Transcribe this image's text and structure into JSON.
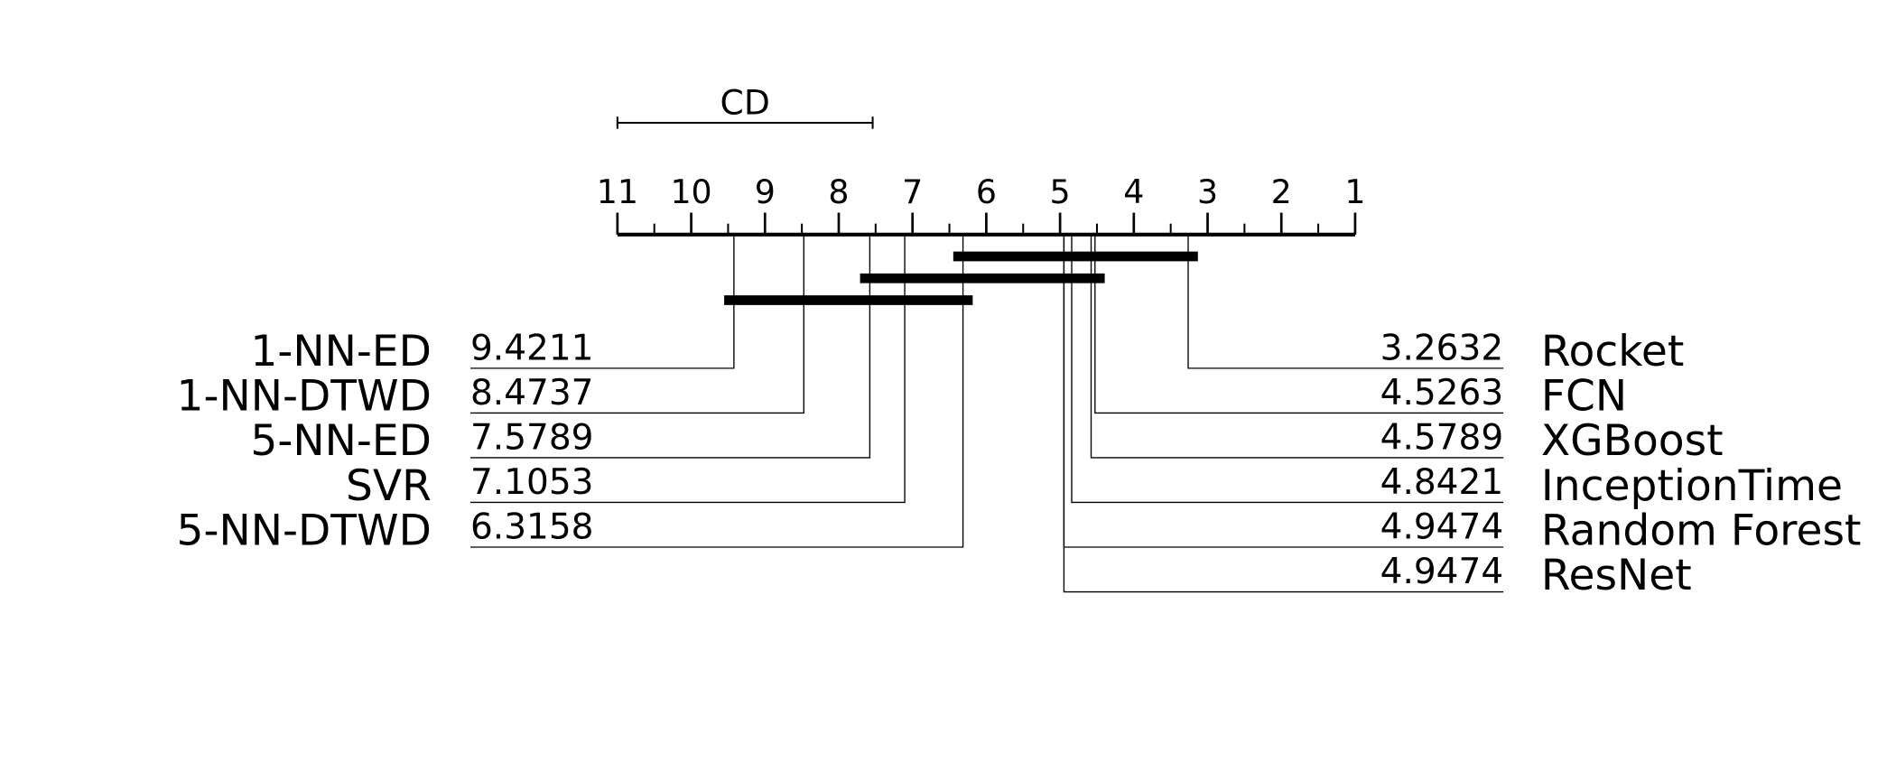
{
  "chart_data": {
    "type": "cd-diagram",
    "xlim": [
      11,
      1
    ],
    "xticks": [
      11,
      10,
      9,
      8,
      7,
      6,
      5,
      4,
      3,
      2,
      1
    ],
    "cd_label": "CD",
    "cd": 3.46,
    "left": {
      "names": [
        "1-NN-ED",
        "1-NN-DTWD",
        "5-NN-ED",
        "SVR",
        "5-NN-DTWD"
      ],
      "ranks": [
        9.4211,
        8.4737,
        7.5789,
        7.1053,
        6.3158
      ]
    },
    "right": {
      "names": [
        "Rocket",
        "FCN",
        "XGBoost",
        "InceptionTime",
        "Random Forest",
        "ResNet"
      ],
      "ranks": [
        3.2632,
        4.5263,
        4.5789,
        4.8421,
        4.9474,
        4.9474
      ]
    },
    "cliques": [
      [
        6.3158,
        3.2632
      ],
      [
        7.5789,
        4.5263
      ],
      [
        9.4211,
        6.3158
      ]
    ],
    "color": "#000000"
  }
}
